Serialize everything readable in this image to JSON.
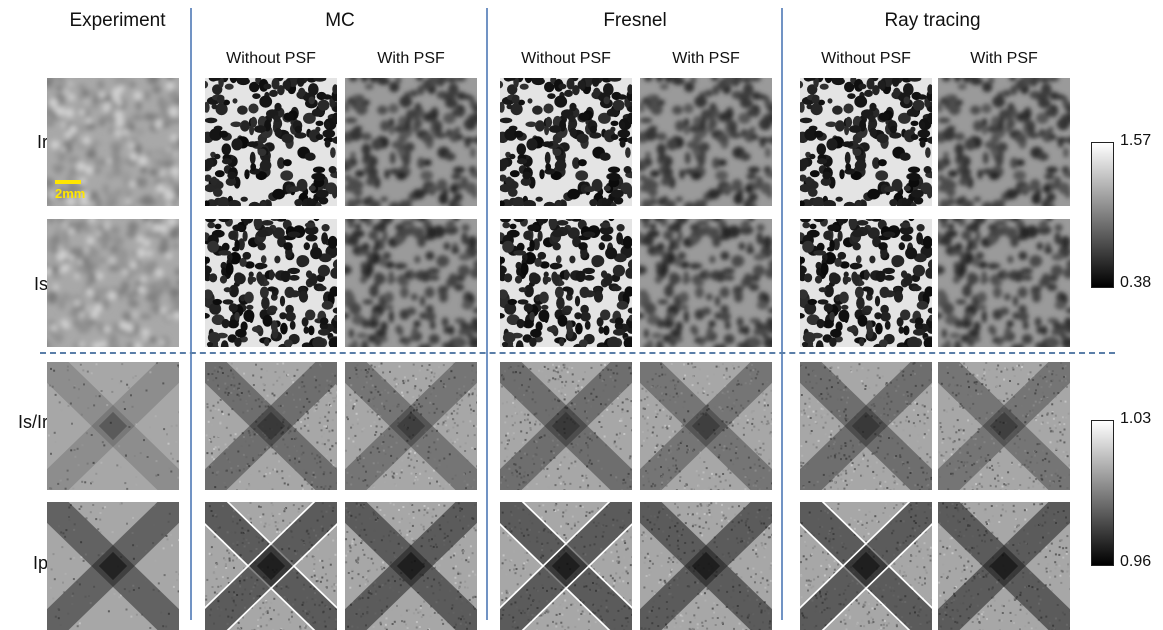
{
  "columns": {
    "experiment": "Experiment",
    "mc": "MC",
    "fresnel": "Fresnel",
    "ray_tracing": "Ray tracing"
  },
  "subcolumns": {
    "without_psf": "Without PSF",
    "with_psf": "With PSF"
  },
  "rows": [
    "Ir",
    "Is",
    "Is/Ir",
    "Ip"
  ],
  "colorbars": {
    "top": {
      "max": "1.57",
      "min": "0.38"
    },
    "bottom": {
      "max": "1.03",
      "min": "0.96"
    }
  },
  "scale_bar": {
    "label": "2mm",
    "color": "#ffe600"
  },
  "accent_colors": {
    "divider": "#7193c4",
    "dashed": "#5a7ea8"
  },
  "panels": {
    "speckle_rows": [
      "Ir",
      "Is"
    ],
    "cross_rows": [
      "Is/Ir",
      "Ip"
    ],
    "tiles_per_row": 7
  }
}
